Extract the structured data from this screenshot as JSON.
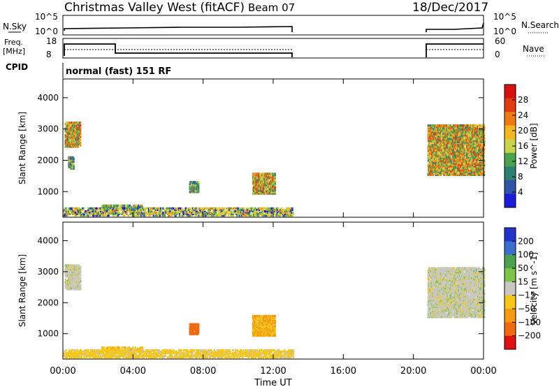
{
  "header": {
    "station": "Christmas Valley West (fitACF)",
    "beam": "Beam 07",
    "date": "18/Dec/2017"
  },
  "top_panels": {
    "nsky_label": "N.Sky",
    "nsearch_label": "N.Search",
    "freq_label_line1": "Freq.",
    "freq_label_line2": "[MHz]",
    "nave_label": "Nave",
    "cpid_label": "CPID",
    "cpid_value": "normal (fast) 151 RF",
    "nsky_ticks": [
      "10^5",
      "10^0"
    ],
    "nsearch_ticks": [
      "10^5",
      "10^0"
    ],
    "freq_ticks": [
      "18",
      "8"
    ],
    "nave_ticks": [
      "60",
      "0"
    ]
  },
  "chart_data": [
    {
      "type": "heatmap",
      "name": "power",
      "xlabel": "Time UT",
      "ylabel": "Slant Range [km]",
      "x_ticks": [
        "00:00",
        "04:00",
        "08:00",
        "12:00",
        "16:00",
        "20:00",
        "00:00"
      ],
      "x_range_hours": [
        0,
        24
      ],
      "y_ticks": [
        1000,
        2000,
        3000,
        4000
      ],
      "ylim": [
        180,
        4600
      ],
      "colorbar": {
        "label": "Power [dB]",
        "ticks": [
          4,
          8,
          12,
          16,
          20,
          24,
          28
        ],
        "range": [
          0,
          32
        ],
        "colors": [
          "#1b1bd8",
          "#2f55a8",
          "#2e7f73",
          "#4aa24e",
          "#c8d24a",
          "#f3b61f",
          "#f07a12",
          "#e23a12",
          "#d81010"
        ]
      },
      "features": [
        {
          "t0": 0.1,
          "t1": 1.0,
          "r0": 2400,
          "r1": 3200,
          "level": "high"
        },
        {
          "t0": 0.3,
          "t1": 0.6,
          "r0": 1700,
          "r1": 2100,
          "level": "mid"
        },
        {
          "t0": 2.2,
          "t1": 4.5,
          "r0": 380,
          "r1": 520,
          "level": "mid"
        },
        {
          "t0": 7.2,
          "t1": 7.7,
          "r0": 950,
          "r1": 1300,
          "level": "mid"
        },
        {
          "t0": 10.8,
          "t1": 12.1,
          "r0": 900,
          "r1": 1550,
          "level": "high"
        },
        {
          "t0": 0.0,
          "t1": 13.1,
          "r0": 200,
          "r1": 450,
          "level": "mixed"
        },
        {
          "t0": 20.8,
          "t1": 24.0,
          "r0": 1500,
          "r1": 3100,
          "level": "high"
        }
      ]
    },
    {
      "type": "heatmap",
      "name": "velocity",
      "xlabel": "Time UT",
      "ylabel": "Slant Range [km]",
      "x_ticks": [
        "00:00",
        "04:00",
        "08:00",
        "12:00",
        "16:00",
        "20:00",
        "00:00"
      ],
      "x_range_hours": [
        0,
        24
      ],
      "y_ticks": [
        1000,
        2000,
        3000,
        4000
      ],
      "ylim": [
        180,
        4600
      ],
      "colorbar": {
        "label": "Velocity [m s^-1]",
        "ticks": [
          200,
          100,
          50,
          15,
          -15,
          -50,
          -100,
          -200
        ],
        "colors": [
          "#2233cc",
          "#3a6fd0",
          "#4aa24e",
          "#7cc44a",
          "#c8c8c0",
          "#f5c518",
          "#f59a12",
          "#f06a10",
          "#e21010"
        ]
      },
      "features": [
        {
          "t0": 0.1,
          "t1": 1.0,
          "r0": 2400,
          "r1": 3200,
          "v": 0
        },
        {
          "t0": 2.2,
          "t1": 4.5,
          "r0": 380,
          "r1": 520,
          "v": -40
        },
        {
          "t0": 7.2,
          "t1": 7.7,
          "r0": 950,
          "r1": 1300,
          "v": -150
        },
        {
          "t0": 10.8,
          "t1": 12.1,
          "r0": 900,
          "r1": 1550,
          "v": -50
        },
        {
          "t0": 0.0,
          "t1": 13.1,
          "r0": 200,
          "r1": 450,
          "v": -30
        },
        {
          "t0": 20.8,
          "t1": 24.0,
          "r0": 1500,
          "r1": 3100,
          "v": 0
        }
      ]
    }
  ]
}
